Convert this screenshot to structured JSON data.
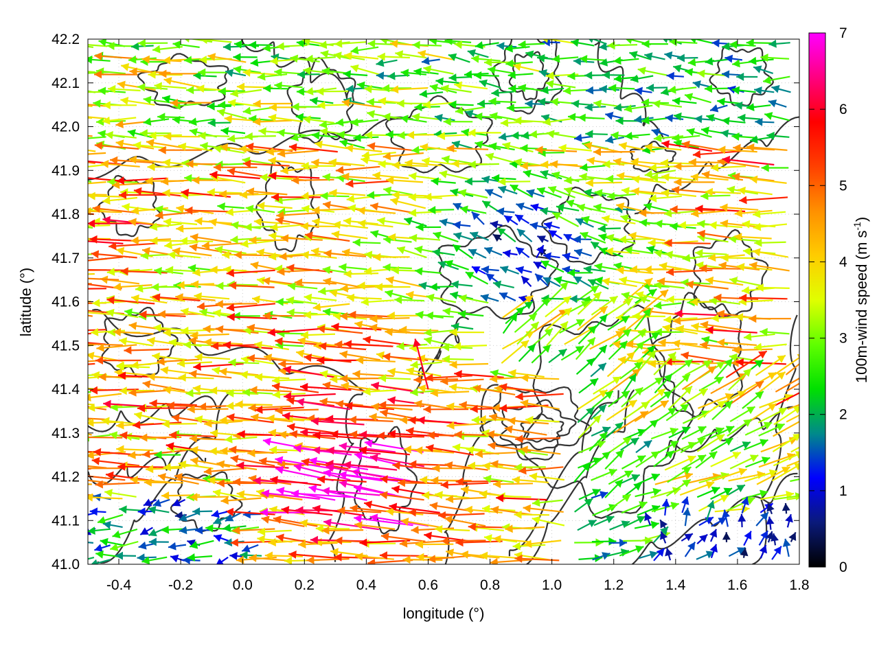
{
  "chart_data": {
    "type": "vector-field",
    "xlabel": "longitude (°)",
    "ylabel": "latitude (°)",
    "xlim": [
      -0.5,
      1.8
    ],
    "ylim": [
      41.0,
      42.2
    ],
    "x_ticks": [
      "-0.4",
      "-0.2",
      "0.0",
      "0.2",
      "0.4",
      "0.6",
      "0.8",
      "1.0",
      "1.2",
      "1.4",
      "1.6",
      "1.8"
    ],
    "x_tick_values": [
      -0.4,
      -0.2,
      0.0,
      0.2,
      0.4,
      0.6,
      0.8,
      1.0,
      1.2,
      1.4,
      1.6,
      1.8
    ],
    "y_ticks": [
      "41.0",
      "41.1",
      "41.2",
      "41.3",
      "41.4",
      "41.5",
      "41.6",
      "41.7",
      "41.8",
      "41.9",
      "42.0",
      "42.1",
      "42.2"
    ],
    "y_tick_values": [
      41.0,
      41.1,
      41.2,
      41.3,
      41.4,
      41.5,
      41.6,
      41.7,
      41.8,
      41.9,
      42.0,
      42.1,
      42.2
    ],
    "grid": true,
    "colorbar": {
      "label": "100m-wind speed (m s",
      "label_sup": "-1",
      "label_end": ")",
      "range": [
        0,
        7
      ],
      "ticks": [
        "0",
        "1",
        "2",
        "3",
        "4",
        "5",
        "6",
        "7"
      ],
      "tick_values": [
        0,
        1,
        2,
        3,
        4,
        5,
        6,
        7
      ],
      "colors": [
        "#000000",
        "#0a1a7a",
        "#0000ff",
        "#008a8a",
        "#00e000",
        "#60ff00",
        "#e0ff00",
        "#ffcc00",
        "#ff9000",
        "#ff4000",
        "#ff0000",
        "#ff0080",
        "#ff00ff"
      ]
    },
    "vectors": [
      {
        "x": -0.48,
        "y": 41.8,
        "u": -5.2,
        "v": 0.3
      },
      {
        "x": -0.4,
        "y": 41.65,
        "u": -4.8,
        "v": 0.2
      },
      {
        "x": -0.3,
        "y": 41.45,
        "u": -3.5,
        "v": 0.1
      },
      {
        "x": -0.2,
        "y": 41.25,
        "u": -2.6,
        "v": 0.0
      },
      {
        "x": -0.05,
        "y": 41.12,
        "u": -1.2,
        "v": -0.3
      },
      {
        "x": 0.3,
        "y": 41.3,
        "u": -5.5,
        "v": 0.8
      },
      {
        "x": 0.45,
        "y": 41.2,
        "u": -6.5,
        "v": 1.2
      },
      {
        "x": 0.6,
        "y": 41.4,
        "u": -1.5,
        "v": 5.8
      },
      {
        "x": 0.85,
        "y": 41.55,
        "u": 1.8,
        "v": 1.6
      },
      {
        "x": 0.95,
        "y": 41.7,
        "u": 0.5,
        "v": 0.9
      },
      {
        "x": 1.2,
        "y": 41.3,
        "u": 3.8,
        "v": 2.4
      },
      {
        "x": 1.5,
        "y": 41.1,
        "u": 0.6,
        "v": 1.8
      },
      {
        "x": 1.7,
        "y": 41.05,
        "u": 0.2,
        "v": 0.6
      },
      {
        "x": 1.4,
        "y": 41.9,
        "u": -3.2,
        "v": -0.5
      },
      {
        "x": 0.7,
        "y": 42.1,
        "u": -2.2,
        "v": 0.2
      }
    ]
  }
}
